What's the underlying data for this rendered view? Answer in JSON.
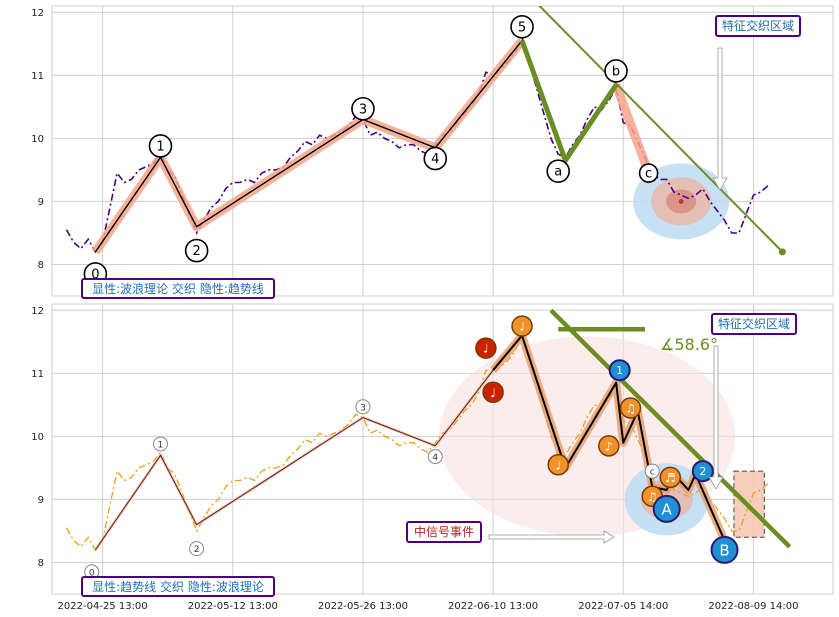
{
  "chart_data": [
    {
      "type": "line",
      "ylim": [
        7.5,
        12.1
      ],
      "yticks": [
        8,
        9,
        10,
        11,
        12
      ],
      "xlim": [
        -2,
        106
      ],
      "gridx": [
        5,
        23,
        41,
        59,
        77,
        95
      ],
      "price_color": "#4b0082",
      "wave_color": "#000000",
      "highlight_color": "#f4a58a",
      "trend_color": "#6b8e23",
      "wave_points": [
        {
          "x": 4,
          "y": 8.2,
          "label": "0",
          "lx": 4,
          "ly": 7.85
        },
        {
          "x": 13,
          "y": 9.7,
          "label": "1",
          "lx": 13,
          "ly": 9.88
        },
        {
          "x": 18,
          "y": 8.6,
          "label": "2",
          "lx": 18,
          "ly": 8.22
        },
        {
          "x": 41,
          "y": 10.3,
          "label": "3",
          "lx": 41,
          "ly": 10.47
        },
        {
          "x": 51,
          "y": 9.85,
          "label": "4",
          "lx": 51,
          "ly": 9.68
        },
        {
          "x": 63,
          "y": 11.55,
          "label": "5",
          "lx": 63,
          "ly": 11.77
        }
      ],
      "abc_points": [
        {
          "x": 63,
          "y": 11.55
        },
        {
          "x": 69,
          "y": 9.65,
          "label": "a",
          "lx": 68,
          "ly": 9.48
        },
        {
          "x": 76,
          "y": 10.85,
          "label": "b",
          "lx": 76,
          "ly": 11.07
        },
        {
          "x": 81,
          "y": 9.3,
          "label": "c",
          "lx": 80.5,
          "ly": 9.45
        }
      ],
      "price_x": [
        0,
        1,
        2,
        3,
        4,
        5,
        6,
        7,
        8,
        9,
        10,
        11,
        12,
        13,
        14,
        15,
        16,
        17,
        18,
        19,
        20,
        21,
        22,
        23,
        24,
        25,
        26,
        27,
        28,
        29,
        30,
        31,
        32,
        33,
        34,
        35,
        36,
        37,
        38,
        39,
        40,
        41,
        42,
        43,
        44,
        45,
        46,
        47,
        48,
        49,
        50,
        51,
        52,
        53,
        54,
        55,
        56,
        57,
        58,
        59,
        60,
        61,
        62,
        63,
        64,
        65,
        66,
        67,
        68,
        69,
        70,
        71,
        72,
        73,
        74,
        75,
        76,
        77,
        78,
        79,
        80,
        81,
        82,
        83,
        84,
        85,
        86,
        87,
        88,
        89,
        90,
        91,
        92,
        93,
        94,
        95,
        96,
        97
      ],
      "price_y": [
        8.55,
        8.35,
        8.25,
        8.4,
        8.2,
        8.35,
        8.9,
        9.45,
        9.3,
        9.35,
        9.5,
        9.55,
        9.6,
        9.75,
        9.5,
        9.4,
        9.1,
        8.8,
        8.5,
        8.7,
        8.9,
        9.0,
        9.2,
        9.3,
        9.3,
        9.35,
        9.3,
        9.45,
        9.5,
        9.5,
        9.55,
        9.7,
        9.8,
        9.95,
        9.9,
        10.05,
        10.0,
        10.05,
        10.1,
        10.2,
        10.35,
        10.3,
        10.05,
        10.1,
        10.0,
        9.95,
        9.85,
        9.9,
        9.9,
        9.8,
        9.75,
        9.9,
        10.05,
        10.1,
        10.25,
        10.4,
        10.5,
        10.7,
        11.05,
        11.0,
        11.1,
        11.2,
        11.35,
        11.6,
        11.2,
        10.8,
        10.4,
        10.0,
        9.75,
        9.7,
        9.9,
        10.05,
        10.3,
        10.5,
        10.45,
        10.6,
        10.8,
        10.25,
        10.2,
        9.95,
        9.7,
        9.45,
        9.35,
        9.35,
        9.15,
        9.1,
        9.05,
        9.1,
        9.2,
        9.0,
        8.85,
        8.7,
        8.5,
        8.5,
        8.8,
        9.1,
        9.15,
        9.25
      ],
      "trendline": [
        [
          65,
          12.15
        ],
        [
          99,
          8.2
        ]
      ],
      "abc_segments": [
        [
          63,
          11.55
        ],
        [
          69,
          9.65
        ],
        [
          76,
          10.85
        ]
      ],
      "zone_center": [
        85,
        9.0
      ],
      "annotations": {
        "zone_label": "特征交织区域",
        "bottom_label": "显性:波浪理论 交织 隐性:趋势线"
      }
    },
    {
      "type": "line",
      "ylim": [
        7.5,
        12.1
      ],
      "yticks": [
        8,
        9,
        10,
        11,
        12
      ],
      "xlim": [
        -2,
        106
      ],
      "gridx": [
        5,
        23,
        41,
        59,
        77,
        95
      ],
      "xticklabels": [
        "2022-04-25 13:00",
        "2022-05-12 13:00",
        "2022-05-26 13:00",
        "2022-06-10 13:00",
        "2022-07-05 14:00",
        "2022-08-09 14:00"
      ],
      "price_color": "#e6a117",
      "wave_color": "#5b1a1a",
      "wave_points": [
        {
          "x": 4,
          "y": 8.2,
          "label": "0",
          "lx": 3.5,
          "ly": 7.85
        },
        {
          "x": 13,
          "y": 9.7,
          "label": "1",
          "lx": 13,
          "ly": 9.88
        },
        {
          "x": 18,
          "y": 8.6,
          "label": "2",
          "lx": 18,
          "ly": 8.22
        },
        {
          "x": 41,
          "y": 10.3,
          "label": "3",
          "lx": 41,
          "ly": 10.47
        },
        {
          "x": 51,
          "y": 9.85,
          "label": "4",
          "lx": 51,
          "ly": 9.68
        }
      ],
      "black_path": [
        [
          59,
          11.05
        ],
        [
          63,
          11.6
        ],
        [
          69,
          9.5
        ],
        [
          76,
          10.85
        ],
        [
          77,
          9.9
        ],
        [
          79,
          10.4
        ],
        [
          81,
          9.2
        ],
        [
          83,
          9.15
        ],
        [
          84,
          9.4
        ],
        [
          86,
          9.15
        ],
        [
          87,
          9.4
        ],
        [
          91,
          8.35
        ]
      ],
      "trendline": [
        [
          67,
          12.0
        ],
        [
          100,
          8.25
        ]
      ],
      "flat_line": [
        [
          68,
          11.7
        ],
        [
          80,
          11.7
        ]
      ],
      "angle_label": "∡58.6°",
      "markers": [
        {
          "x": 58,
          "y": 11.4,
          "sym": "♩",
          "color": "#cc2200"
        },
        {
          "x": 59,
          "y": 10.7,
          "sym": "♩",
          "color": "#cc2200"
        },
        {
          "x": 63,
          "y": 11.75,
          "sym": "♩",
          "color": "#f0922b"
        },
        {
          "x": 68,
          "y": 9.55,
          "sym": "♩",
          "color": "#f0922b"
        },
        {
          "x": 75,
          "y": 9.85,
          "sym": "♪",
          "color": "#f0922b"
        },
        {
          "x": 78,
          "y": 10.45,
          "sym": "♫",
          "color": "#f0922b"
        },
        {
          "x": 81,
          "y": 9.05,
          "sym": "♫",
          "color": "#f0922b"
        },
        {
          "x": 83.5,
          "y": 9.35,
          "sym": "♬",
          "color": "#f0922b"
        }
      ],
      "blue_markers": [
        {
          "x": 76.5,
          "y": 11.05,
          "label": "1",
          "r": 10
        },
        {
          "x": 88,
          "y": 9.45,
          "label": "2",
          "r": 10
        },
        {
          "x": 83,
          "y": 8.85,
          "label": "A",
          "r": 13
        },
        {
          "x": 91,
          "y": 8.2,
          "label": "B",
          "r": 13
        }
      ],
      "small_c": {
        "x": 81,
        "y": 9.45,
        "label": "c"
      },
      "price_x": [
        0,
        1,
        2,
        3,
        4,
        5,
        6,
        7,
        8,
        9,
        10,
        11,
        12,
        13,
        14,
        15,
        16,
        17,
        18,
        19,
        20,
        21,
        22,
        23,
        24,
        25,
        26,
        27,
        28,
        29,
        30,
        31,
        32,
        33,
        34,
        35,
        36,
        37,
        38,
        39,
        40,
        41,
        42,
        43,
        44,
        45,
        46,
        47,
        48,
        49,
        50,
        51,
        52,
        53,
        54,
        55,
        56,
        57,
        58,
        59,
        60,
        61,
        62,
        63,
        64,
        65,
        66,
        67,
        68,
        69,
        70,
        71,
        72,
        73,
        74,
        75,
        76,
        77,
        78,
        79,
        80,
        81,
        82,
        83,
        84,
        85,
        86,
        87,
        88,
        89,
        90,
        91,
        92,
        93,
        94,
        95,
        96,
        97
      ],
      "price_y": [
        8.55,
        8.35,
        8.25,
        8.4,
        8.2,
        8.35,
        8.9,
        9.45,
        9.3,
        9.35,
        9.5,
        9.55,
        9.6,
        9.75,
        9.5,
        9.4,
        9.1,
        8.8,
        8.5,
        8.7,
        8.9,
        9.0,
        9.2,
        9.3,
        9.3,
        9.35,
        9.3,
        9.45,
        9.5,
        9.5,
        9.55,
        9.7,
        9.8,
        9.95,
        9.9,
        10.05,
        10.0,
        10.05,
        10.1,
        10.2,
        10.35,
        10.3,
        10.05,
        10.1,
        10.0,
        9.95,
        9.85,
        9.9,
        9.9,
        9.8,
        9.75,
        9.9,
        10.05,
        10.1,
        10.25,
        10.4,
        10.5,
        10.7,
        11.05,
        11.0,
        11.1,
        11.2,
        11.35,
        11.6,
        11.2,
        10.8,
        10.4,
        10.0,
        9.75,
        9.7,
        9.9,
        10.05,
        10.3,
        10.5,
        10.45,
        10.6,
        10.8,
        10.25,
        10.2,
        9.95,
        9.7,
        9.45,
        9.35,
        9.35,
        9.15,
        9.1,
        9.05,
        9.1,
        9.2,
        9.0,
        8.85,
        8.7,
        8.5,
        8.5,
        8.8,
        9.1,
        9.15,
        9.25
      ],
      "annotations": {
        "zone_label": "特征交织区域",
        "signal_label": "中信号事件",
        "bottom_label": "显性:趋势线 交织 隐性:波浪理论"
      }
    }
  ]
}
